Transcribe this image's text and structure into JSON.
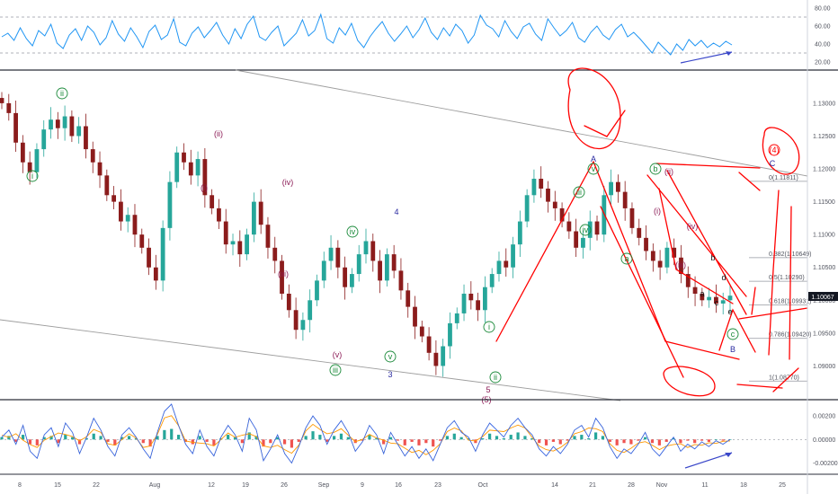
{
  "colors": {
    "candle_up": "#26a69a",
    "candle_down": "#8b1c1c",
    "rsi_line": "#2196f3",
    "osc_fast": "#2962ff",
    "osc_slow": "#ff9800",
    "hist_up": "#26a69a",
    "hist_down": "#ef5350",
    "annotation": "#ff0000",
    "wave_green": "#1b8a3a",
    "wave_purple": "#8b1a55",
    "wave_blue": "#2a2aa0",
    "channel": "#9e9e9e",
    "price_tag": "#131722"
  },
  "price_tag": "1.10067",
  "chart_data": [
    {
      "type": "line",
      "panel": "rsi",
      "yticks": [
        "80.00",
        "60.00",
        "40.00",
        "20.00"
      ],
      "levels": [
        70,
        30
      ],
      "ylim": [
        15,
        85
      ],
      "values": [
        48,
        52,
        44,
        58,
        46,
        38,
        55,
        49,
        62,
        41,
        35,
        50,
        57,
        44,
        60,
        53,
        39,
        47,
        66,
        51,
        43,
        58,
        48,
        36,
        54,
        61,
        45,
        50,
        68,
        42,
        38,
        52,
        59,
        47,
        55,
        64,
        50,
        40,
        57,
        46,
        62,
        71,
        48,
        44,
        53,
        60,
        38,
        45,
        52,
        67,
        49,
        55,
        73,
        46,
        41,
        58,
        50,
        63,
        44,
        36,
        48,
        57,
        65,
        52,
        43,
        51,
        60,
        47,
        56,
        69,
        53,
        45,
        58,
        49,
        62,
        55,
        41,
        50,
        72,
        61,
        57,
        48,
        66,
        54,
        46,
        59,
        63,
        51,
        44,
        68,
        58,
        49,
        55,
        64,
        47,
        42,
        53,
        60,
        50,
        45,
        56,
        62,
        48,
        53,
        46,
        38,
        30,
        42,
        35,
        28,
        40,
        33,
        45,
        38,
        44,
        36,
        41,
        37,
        43,
        39
      ],
      "trend_arrow_label": ""
    },
    {
      "type": "candlestick",
      "panel": "price",
      "currency_pair": "",
      "yticks": [
        "1.13000",
        "1.12500",
        "1.12000",
        "1.11500",
        "1.11000",
        "1.10500",
        "1.10000",
        "1.09500",
        "1.09000"
      ],
      "ylim": [
        1.085,
        1.1345
      ],
      "xticks": [
        "8",
        "15",
        "22",
        "Aug",
        "12",
        "19",
        "26",
        "Sep",
        "9",
        "16",
        "23",
        "Oct",
        "14",
        "21",
        "28",
        "Nov",
        "11",
        "18",
        "25"
      ],
      "close": [
        1.13,
        1.1285,
        1.124,
        1.121,
        1.1195,
        1.123,
        1.126,
        1.1275,
        1.1262,
        1.128,
        1.125,
        1.1265,
        1.123,
        1.121,
        1.119,
        1.116,
        1.115,
        1.112,
        1.113,
        1.11,
        1.108,
        1.105,
        1.103,
        1.111,
        1.118,
        1.1225,
        1.121,
        1.119,
        1.1215,
        1.116,
        1.114,
        1.112,
        1.1085,
        1.109,
        1.107,
        1.11,
        1.115,
        1.1115,
        1.108,
        1.106,
        1.101,
        1.0985,
        1.0955,
        1.097,
        1.1,
        1.103,
        1.106,
        1.108,
        1.105,
        1.102,
        1.104,
        1.107,
        1.109,
        1.106,
        1.103,
        1.107,
        1.1045,
        1.1015,
        1.099,
        1.096,
        1.0945,
        1.092,
        1.09,
        1.093,
        1.0965,
        1.098,
        1.101,
        1.1,
        1.0985,
        1.102,
        1.104,
        1.106,
        1.105,
        1.1085,
        1.112,
        1.116,
        1.1185,
        1.117,
        1.115,
        1.114,
        1.112,
        1.1105,
        1.108,
        1.1095,
        1.112,
        1.11,
        1.116,
        1.118,
        1.1165,
        1.114,
        1.111,
        1.1095,
        1.1075,
        1.106,
        1.105,
        1.108,
        1.1065,
        1.104,
        1.102,
        1.101,
        1.1,
        1.1005,
        1.0995,
        1.1,
        1.1007
      ],
      "wave_labels": [
        {
          "text": "i",
          "color": "green",
          "circled": true
        },
        {
          "text": "ii",
          "color": "green",
          "circled": true
        },
        {
          "text": "(i)",
          "color": "purple",
          "circled": false
        },
        {
          "text": "(ii)",
          "color": "purple",
          "circled": false
        },
        {
          "text": "(iii)",
          "color": "purple",
          "circled": false
        },
        {
          "text": "(iv)",
          "color": "purple",
          "circled": false
        },
        {
          "text": "(v)",
          "color": "purple",
          "circled": false
        },
        {
          "text": "iii",
          "color": "green",
          "circled": true
        },
        {
          "text": "iv",
          "color": "green",
          "circled": true
        },
        {
          "text": "v",
          "color": "green",
          "circled": true
        },
        {
          "text": "4",
          "color": "blue",
          "circled": false
        },
        {
          "text": "3",
          "color": "blue",
          "circled": false
        },
        {
          "text": "5",
          "color": "purple",
          "circled": false
        },
        {
          "text": "(5)",
          "color": "purple",
          "circled": false
        },
        {
          "text": "i",
          "color": "green",
          "circled": true
        },
        {
          "text": "ii",
          "color": "green",
          "circled": true
        },
        {
          "text": "iii",
          "color": "green",
          "circled": true
        },
        {
          "text": "iv",
          "color": "green",
          "circled": true
        },
        {
          "text": "A",
          "color": "blue",
          "circled": false
        },
        {
          "text": "v",
          "color": "green",
          "circled": true
        },
        {
          "text": "a",
          "color": "green",
          "circled": true
        },
        {
          "text": "b",
          "color": "green",
          "circled": true
        },
        {
          "text": "(i)",
          "color": "purple",
          "circled": false
        },
        {
          "text": "(ii)",
          "color": "purple",
          "circled": false
        },
        {
          "text": "(iii)",
          "color": "purple",
          "circled": false
        },
        {
          "text": "(iv)",
          "color": "purple",
          "circled": false
        },
        {
          "text": "a",
          "color": "black",
          "circled": false
        },
        {
          "text": "b",
          "color": "black",
          "circled": false
        },
        {
          "text": "c",
          "color": "black",
          "circled": false
        },
        {
          "text": "d",
          "color": "black",
          "circled": false
        },
        {
          "text": "e",
          "color": "black",
          "circled": false
        },
        {
          "text": "c",
          "color": "green",
          "circled": true
        },
        {
          "text": "B",
          "color": "blue",
          "circled": false
        },
        {
          "text": "C",
          "color": "blue",
          "circled": false
        },
        {
          "text": "(4)",
          "color": "red",
          "circled": true
        }
      ],
      "fib_levels": [
        {
          "label": "0(1.11811)",
          "value": 1.11811
        },
        {
          "label": "0.382(1.10649)",
          "value": 1.10649
        },
        {
          "label": "0.5(1.10290)",
          "value": 1.1029
        },
        {
          "label": "0.618(1.09931)",
          "value": 1.09931
        },
        {
          "label": "0.786(1.09420)",
          "value": 1.0942
        },
        {
          "label": "1(1.08770)",
          "value": 1.0877
        }
      ]
    },
    {
      "type": "line",
      "panel": "oscillator",
      "yticks": [
        "0.00200",
        "0.00000",
        "-0.00200"
      ],
      "ylim": [
        -0.0028,
        0.003
      ],
      "fast": [
        0.0002,
        0.0008,
        -0.0004,
        0.0012,
        -0.001,
        -0.0016,
        0.0004,
        0.001,
        -0.0006,
        0.0014,
        0.0006,
        -0.0012,
        0.0002,
        0.0018,
        0.0008,
        -0.0006,
        -0.0014,
        0.0004,
        0.001,
        0.0002,
        -0.0008,
        -0.0016,
        0.0006,
        0.0024,
        0.003,
        0.0012,
        -0.0004,
        -0.0012,
        0.0008,
        -0.0006,
        -0.0014,
        0.0002,
        0.0012,
        0.0004,
        -0.001,
        0.0018,
        0.0008,
        -0.0018,
        -0.0008,
        0.0004,
        -0.0012,
        -0.002,
        -0.0006,
        0.001,
        0.002,
        0.0012,
        -0.0004,
        0.0008,
        0.0016,
        0.0006,
        -0.001,
        -0.0002,
        0.0012,
        0.0004,
        -0.0012,
        0.0006,
        -0.0004,
        -0.0014,
        -0.0006,
        -0.0016,
        -0.0008,
        -0.0018,
        -0.0004,
        0.001,
        0.0016,
        0.0006,
        0.0002,
        -0.001,
        0.0004,
        0.0014,
        0.0008,
        0.0002,
        0.0012,
        0.0018,
        0.001,
        0.0004,
        -0.0008,
        -0.0014,
        -0.0006,
        -0.0012,
        -0.0004,
        0.0008,
        0.0012,
        0.0002,
        0.0018,
        0.001,
        -0.0006,
        -0.0016,
        -0.0008,
        -0.0012,
        -0.0004,
        0.0006,
        -0.0008,
        -0.0014,
        -0.0006,
        0.0002,
        -0.001,
        -0.0004,
        -0.0008,
        -0.0002,
        -0.0006,
        -0.0001,
        -0.0004,
        0.0
      ],
      "histogram": [
        0.0002,
        0.0003,
        -0.0002,
        0.0004,
        -0.0004,
        -0.0005,
        0.0002,
        0.0003,
        -0.0003,
        0.0004,
        0.0002,
        -0.0004,
        0.0001,
        0.0005,
        0.0003,
        -0.0002,
        -0.0005,
        0.0002,
        0.0003,
        0.0001,
        -0.0003,
        -0.0006,
        0.0003,
        0.0008,
        0.0009,
        0.0004,
        -0.0002,
        -0.0004,
        0.0003,
        -0.0002,
        -0.0005,
        0.0001,
        0.0004,
        0.0002,
        -0.0003,
        0.0006,
        0.0003,
        -0.0006,
        -0.0003,
        0.0002,
        -0.0004,
        -0.0007,
        -0.0002,
        0.0003,
        0.0007,
        0.0004,
        -0.0002,
        0.0003,
        0.0005,
        0.0002,
        -0.0003,
        -0.0001,
        0.0004,
        0.0001,
        -0.0004,
        0.0002,
        -0.0001,
        -0.0005,
        -0.0002,
        -0.0005,
        -0.0003,
        -0.0006,
        -0.0001,
        0.0003,
        0.0005,
        0.0002,
        0.0001,
        -0.0003,
        0.0001,
        0.0005,
        0.0003,
        0.0001,
        0.0004,
        0.0006,
        0.0003,
        0.0001,
        -0.0003,
        -0.0005,
        -0.0002,
        -0.0004,
        -0.0001,
        0.0003,
        0.0004,
        0.0001,
        0.0006,
        0.0003,
        -0.0002,
        -0.0005,
        -0.0003,
        -0.0004,
        -0.0001,
        0.0002,
        -0.0003,
        -0.0005,
        -0.0002,
        0.0001,
        -0.0003,
        -0.0001,
        -0.0003,
        -0.0001,
        -0.0002,
        0.0,
        -0.0001,
        0.0
      ]
    }
  ]
}
